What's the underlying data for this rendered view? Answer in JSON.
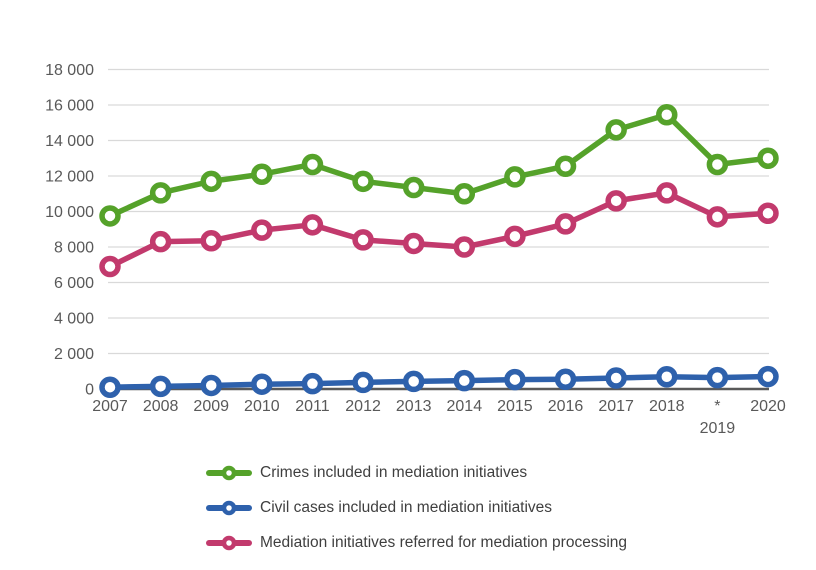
{
  "chart_data": {
    "type": "line",
    "title": "",
    "xlabel": "",
    "ylabel": "",
    "categories": [
      "2007",
      "2008",
      "2009",
      "2010",
      "2011",
      "2012",
      "2013",
      "2014",
      "2015",
      "2016",
      "2017",
      "2018",
      "*\n2019",
      "2020"
    ],
    "series": [
      {
        "name": "Crimes included in mediation initiatives",
        "color": "#55A22A",
        "values": [
          9750,
          11050,
          11700,
          12100,
          12650,
          11700,
          11350,
          11000,
          11950,
          12550,
          14600,
          15450,
          12650,
          13000
        ]
      },
      {
        "name": "Civil cases included in mediation initiatives",
        "color": "#2E61AC",
        "values": [
          100,
          150,
          200,
          270,
          300,
          370,
          430,
          470,
          530,
          550,
          620,
          690,
          640,
          700
        ]
      },
      {
        "name": "Mediation initiatives referred for mediation processing",
        "color": "#C23A6D",
        "values": [
          6900,
          8300,
          8350,
          8950,
          9250,
          8400,
          8200,
          8000,
          8600,
          9300,
          10600,
          11050,
          9700,
          9900
        ]
      }
    ],
    "ylim": [
      0,
      18000
    ],
    "ytick_step": 2000,
    "ytick_labels": [
      "0",
      "2 000",
      "4 000",
      "6 000",
      "8 000",
      "10 000",
      "12 000",
      "14 000",
      "16 000",
      "18 000"
    ],
    "grid": "horizontal",
    "legend_position": "bottom-left",
    "footnote_marker": "*",
    "axis_colors": {
      "gridline": "#D9D9D9",
      "axis_line": "#595959",
      "tick_label": "#595959",
      "legend_label": "#3F3F3F",
      "marker_fill": "#FFFFFF"
    }
  }
}
